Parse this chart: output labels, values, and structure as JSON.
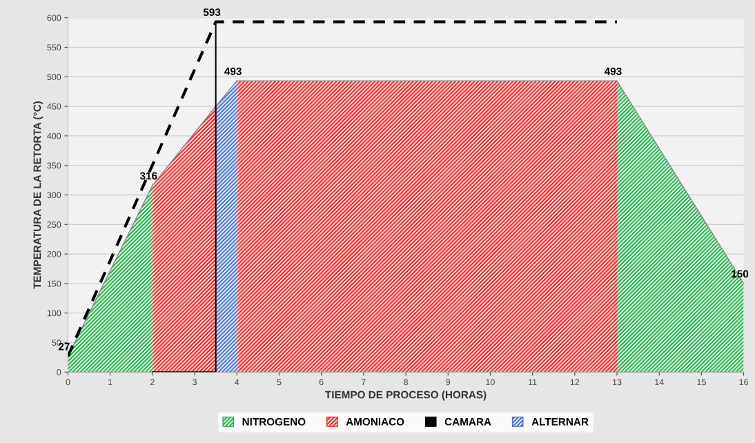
{
  "chart_data": {
    "type": "area",
    "xlabel": "TIEMPO DE PROCESO (HORAS)",
    "ylabel": "TEMPERATURA DE LA RETORTA (°C)",
    "xlim": [
      0,
      16
    ],
    "ylim": [
      0,
      600
    ],
    "xticks": [
      0,
      1,
      2,
      3,
      4,
      5,
      6,
      7,
      8,
      9,
      10,
      11,
      12,
      13,
      14,
      15,
      16
    ],
    "yticks": [
      0,
      50,
      100,
      150,
      200,
      250,
      300,
      350,
      400,
      450,
      500,
      550,
      600
    ],
    "grid": "y",
    "legend": "bottom",
    "series": [
      {
        "name": "NITROGENO",
        "color": "#22b04a",
        "x": [
          0,
          2,
          7,
          13,
          16
        ],
        "values": [
          27,
          316,
          null,
          493,
          150
        ]
      },
      {
        "name": "AMONIACO",
        "color": "#ff2020",
        "x": [
          2,
          3.5,
          3.75,
          4,
          13
        ],
        "values": [
          316,
          450,
          null,
          493,
          493
        ]
      },
      {
        "name": "CAMARA",
        "type": "line",
        "line_style": "dashed",
        "color": "#000000",
        "x": [
          0,
          3.5,
          13
        ],
        "values": [
          27,
          593,
          593
        ]
      },
      {
        "type": "line",
        "line_style": "solid",
        "color": "#000000",
        "x": [
          2,
          3.5,
          3.5
        ],
        "values": [
          0,
          0,
          593
        ]
      },
      {
        "name": "ALTERNAR",
        "color": "#4472c4",
        "x": [
          3.5,
          4
        ],
        "values": [
          450,
          493
        ]
      }
    ],
    "annotations": [
      {
        "text": "27",
        "x": 0,
        "y": 27
      },
      {
        "text": "316",
        "x": 2,
        "y": 316
      },
      {
        "text": "593",
        "x": 3.5,
        "y": 593
      },
      {
        "text": "493",
        "x": 4,
        "y": 493
      },
      {
        "text": "493",
        "x": 13,
        "y": 493
      },
      {
        "text": "150",
        "x": 16,
        "y": 150
      }
    ]
  }
}
